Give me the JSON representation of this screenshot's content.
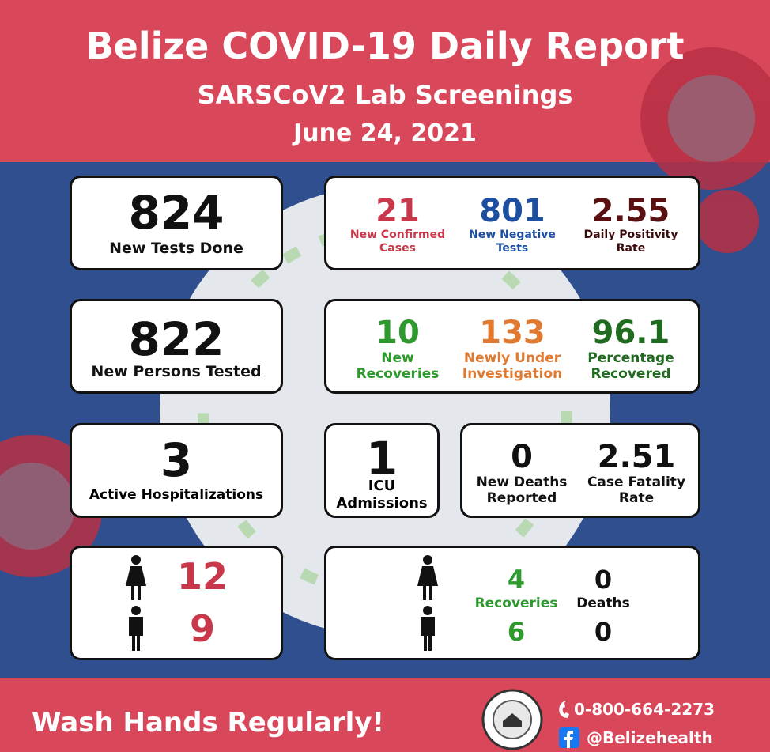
{
  "header": {
    "title": "Belize COVID-19 Daily Report",
    "subtitle": "SARSCoV2 Lab Screenings",
    "date": "June 24, 2021"
  },
  "tests": {
    "value": 824,
    "label": "New Tests Done"
  },
  "screening": [
    {
      "value": 21,
      "label": "New Confirmed Cases"
    },
    {
      "value": 801,
      "label": "New Negative Tests"
    },
    {
      "value": 2.55,
      "label": "Daily Positivity Rate"
    }
  ],
  "persons": {
    "value": 822,
    "label": "New Persons Tested"
  },
  "status": [
    {
      "value": 10,
      "label": "New Recoveries"
    },
    {
      "value": 133,
      "label": "Newly Under Investigation"
    },
    {
      "value": 96.1,
      "label": "Percentage Recovered"
    }
  ],
  "hospitalizations": {
    "value": 3,
    "label": "Active Hospitalizations"
  },
  "icu": {
    "value": 1,
    "label": "ICU Admissions"
  },
  "deaths": [
    {
      "value": 0,
      "label": "New Deaths Reported"
    },
    {
      "value": 2.51,
      "label": "Case Fatality Rate"
    }
  ],
  "cases_by_sex": {
    "female": 12,
    "male": 9
  },
  "outcomes_by_sex": {
    "recoveries_label": "Recoveries",
    "deaths_label": "Deaths",
    "female": {
      "recoveries": 4,
      "deaths": 0
    },
    "male": {
      "recoveries": 6,
      "deaths": 0
    }
  },
  "footer": {
    "slogan": "Wash Hands Regularly!",
    "phone": "0-800-664-2273",
    "social": "@Belizehealth"
  }
}
